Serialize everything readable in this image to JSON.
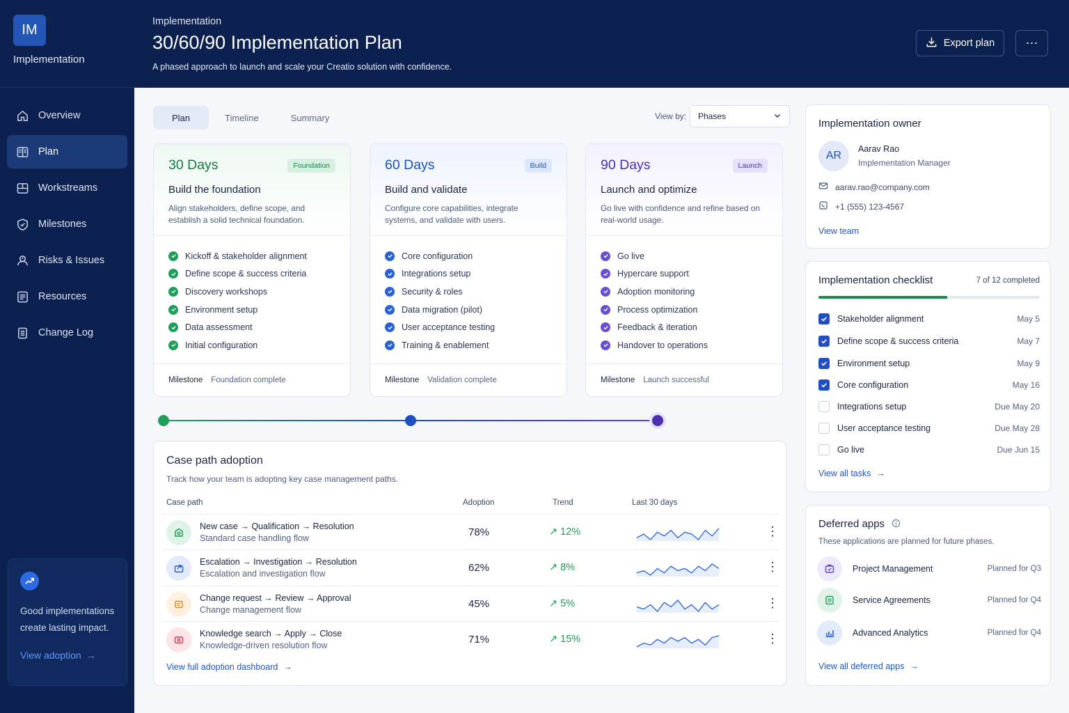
{
  "sidebar": {
    "logo": "IM",
    "app_name": "Implementation",
    "items": [
      {
        "label": "Overview",
        "icon": "home-icon"
      },
      {
        "label": "Plan",
        "icon": "plan-icon",
        "active": true
      },
      {
        "label": "Workstreams",
        "icon": "workstreams-icon"
      },
      {
        "label": "Milestones",
        "icon": "shield-icon"
      },
      {
        "label": "Risks & Issues",
        "icon": "risk-icon"
      },
      {
        "label": "Resources",
        "icon": "resources-icon"
      },
      {
        "label": "Change Log",
        "icon": "log-icon"
      }
    ],
    "promo": {
      "text": "Good implementations create lasting impact.",
      "link": "View adoption"
    }
  },
  "header": {
    "breadcrumb": "Implementation",
    "title": "30/60/90 Implementation Plan",
    "subtitle": "A phased approach to launch and scale your Creatio solution with confidence.",
    "export_label": "Export plan",
    "more_label": "⋯"
  },
  "tabs": [
    "Plan",
    "Timeline",
    "Summary"
  ],
  "view_by": {
    "label": "View by:",
    "value": "Phases"
  },
  "phases": [
    {
      "days": "30 Days",
      "badge": "Foundation",
      "name": "Build the foundation",
      "desc": "Align stakeholders, define scope, and establish a solid technical foundation.",
      "items": [
        "Kickoff & stakeholder alignment",
        "Define scope & success criteria",
        "Discovery workshops",
        "Environment setup",
        "Data assessment",
        "Initial configuration"
      ],
      "milestone_label": "Milestone",
      "milestone": "Foundation complete"
    },
    {
      "days": "60 Days",
      "badge": "Build",
      "name": "Build and validate",
      "desc": "Configure core capabilities, integrate systems, and validate with users.",
      "items": [
        "Core configuration",
        "Integrations setup",
        "Security & roles",
        "Data migration (pilot)",
        "User acceptance testing",
        "Training & enablement"
      ],
      "milestone_label": "Milestone",
      "milestone": "Validation complete"
    },
    {
      "days": "90 Days",
      "badge": "Launch",
      "name": "Launch and optimize",
      "desc": "Go live with confidence and refine based on real-world usage.",
      "items": [
        "Go live",
        "Hypercare support",
        "Adoption monitoring",
        "Process optimization",
        "Feedback & iteration",
        "Handover to operations"
      ],
      "milestone_label": "Milestone",
      "milestone": "Launch successful"
    }
  ],
  "adoption": {
    "title": "Case path adoption",
    "subtitle": "Track how your team is adopting key case management paths.",
    "columns": [
      "Case path",
      "Adoption",
      "Trend",
      "Last 30 days"
    ],
    "rows": [
      {
        "path": "New case → Qualification → Resolution",
        "desc": "Standard case handling flow",
        "adoption": "78%",
        "trend": "↗ 12%",
        "icon": "case-icon",
        "spark": [
          4,
          6,
          3,
          7,
          5,
          8,
          4,
          7,
          6,
          3,
          8,
          5,
          9
        ]
      },
      {
        "path": "Escalation → Investigation → Resolution",
        "desc": "Escalation and investigation flow",
        "adoption": "62%",
        "trend": "↗ 8%",
        "icon": "escalation-icon",
        "spark": [
          4,
          5,
          3,
          6,
          4,
          7,
          5,
          6,
          4,
          7,
          5,
          8,
          6
        ]
      },
      {
        "path": "Change request → Review → Approval",
        "desc": "Change management flow",
        "adoption": "45%",
        "trend": "↗ 5%",
        "icon": "change-icon",
        "spark": [
          5,
          4,
          6,
          3,
          7,
          5,
          8,
          4,
          6,
          3,
          7,
          4,
          6
        ]
      },
      {
        "path": "Knowledge search → Apply → Close",
        "desc": "Knowledge-driven resolution flow",
        "adoption": "71%",
        "trend": "↗ 15%",
        "icon": "knowledge-icon",
        "spark": [
          3,
          5,
          4,
          7,
          5,
          8,
          6,
          8,
          5,
          7,
          4,
          8,
          9
        ]
      }
    ],
    "link": "View full adoption dashboard"
  },
  "owner": {
    "title": "Implementation owner",
    "initials": "AR",
    "name": "Aarav Rao",
    "role": "Implementation Manager",
    "email": "aarav.rao@company.com",
    "phone": "+1 (555) 123-4567",
    "link": "View team"
  },
  "checklist": {
    "title": "Implementation checklist",
    "count": "7 of 12 completed",
    "progress": 0.583,
    "items": [
      {
        "label": "Stakeholder alignment",
        "date": "May 5",
        "done": true
      },
      {
        "label": "Define scope & success criteria",
        "date": "May 7",
        "done": true
      },
      {
        "label": "Environment setup",
        "date": "May 9",
        "done": true
      },
      {
        "label": "Core configuration",
        "date": "May 16",
        "done": true
      },
      {
        "label": "Integrations setup",
        "date": "Due May 20",
        "done": false
      },
      {
        "label": "User acceptance testing",
        "date": "Due May 28",
        "done": false
      },
      {
        "label": "Go live",
        "date": "Due Jun 15",
        "done": false
      }
    ],
    "link": "View all tasks"
  },
  "deferred": {
    "title": "Deferred apps",
    "subtitle": "These applications are planned for future phases.",
    "apps": [
      {
        "name": "Project Management",
        "plan": "Planned for Q3",
        "icon": "project-icon"
      },
      {
        "name": "Service Agreements",
        "plan": "Planned for Q4",
        "icon": "agreement-icon"
      },
      {
        "name": "Advanced Analytics",
        "plan": "Planned for Q4",
        "icon": "analytics-icon"
      }
    ],
    "link": "View all deferred apps"
  },
  "colors": {
    "navy": "#0d2150",
    "accent": "#1c56d0",
    "green": "#1f9e5c",
    "blue": "#2a61d6",
    "purple": "#6b4fcf"
  }
}
